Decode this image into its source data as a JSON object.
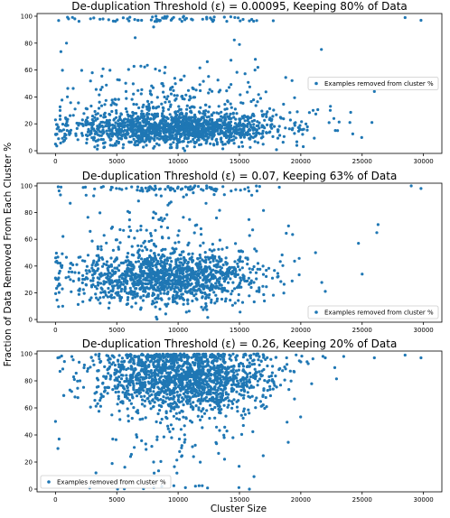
{
  "figure": {
    "ylabel": "Fraction of Data Removed From Each Cluster %",
    "xlabel": "Cluster Size"
  },
  "colors": {
    "point": "#1f77b4",
    "axis": "#000000",
    "legend_border": "#cccccc"
  },
  "chart_data": [
    {
      "type": "scatter",
      "title": "De-duplication Threshold (ε) = 0.00095, Keeping 80% of Data",
      "legend": "Examples removed from cluster %",
      "legend_loc": "center-right",
      "xlim": [
        -1500,
        31500
      ],
      "ylim": [
        -2,
        102
      ],
      "xticks": [
        0,
        5000,
        10000,
        15000,
        20000,
        25000,
        30000
      ],
      "yticks": [
        0,
        20,
        40,
        60,
        80,
        100
      ],
      "point_count": 1700,
      "distribution": {
        "center_x": 9500,
        "spread_x": 4300,
        "center_y": 16,
        "spread_y": 6,
        "outlier_rate": 0.2,
        "top_band": 0.04
      },
      "points": [
        [
          28500,
          99
        ],
        [
          29800,
          97
        ],
        [
          26000,
          44
        ],
        [
          24000,
          21
        ],
        [
          25800,
          21
        ],
        [
          22400,
          30
        ],
        [
          22700,
          24
        ],
        [
          23000,
          15
        ],
        [
          21000,
          30
        ],
        [
          20200,
          3
        ],
        [
          16500,
          62
        ],
        [
          16300,
          68
        ],
        [
          15000,
          79
        ],
        [
          0,
          5
        ],
        [
          900,
          80
        ],
        [
          1600,
          31
        ],
        [
          3000,
          58
        ],
        [
          6500,
          84
        ],
        [
          8000,
          92
        ]
      ]
    },
    {
      "type": "scatter",
      "title": "De-duplication Threshold (ε) = 0.07, Keeping 63% of Data",
      "legend": "Examples removed from cluster %",
      "legend_loc": "bottom-right",
      "xlim": [
        -1500,
        31500
      ],
      "ylim": [
        -2,
        102
      ],
      "xticks": [
        0,
        5000,
        10000,
        15000,
        20000,
        25000,
        30000
      ],
      "yticks": [
        0,
        20,
        40,
        60,
        80,
        100
      ],
      "point_count": 1500,
      "distribution": {
        "center_x": 9000,
        "spread_x": 3800,
        "center_y": 31,
        "spread_y": 10,
        "outlier_rate": 0.15,
        "top_band": 0.04
      },
      "points": [
        [
          29000,
          100
        ],
        [
          29800,
          98
        ],
        [
          26300,
          71
        ],
        [
          26200,
          65
        ],
        [
          25000,
          34
        ],
        [
          24700,
          57
        ],
        [
          22000,
          21
        ],
        [
          21200,
          50
        ],
        [
          19000,
          70
        ],
        [
          0,
          31
        ],
        [
          200,
          25
        ],
        [
          1200,
          87
        ],
        [
          2500,
          93
        ],
        [
          16000,
          93
        ]
      ]
    },
    {
      "type": "scatter",
      "title": "De-duplication Threshold (ε) = 0.26, Keeping 20% of Data",
      "legend": "Examples removed from cluster %",
      "legend_loc": "bottom-left",
      "xlim": [
        -1500,
        31500
      ],
      "ylim": [
        -2,
        102
      ],
      "xticks": [
        0,
        5000,
        10000,
        15000,
        20000,
        25000,
        30000
      ],
      "yticks": [
        0,
        20,
        40,
        60,
        80,
        100
      ],
      "point_count": 1700,
      "distribution": {
        "center_x": 10500,
        "spread_x": 3600,
        "center_y": 83,
        "spread_y": 13,
        "outlier_rate": 0.1,
        "top_band": 0.0
      },
      "points": [
        [
          28500,
          99
        ],
        [
          29800,
          97
        ],
        [
          26000,
          97
        ],
        [
          23500,
          98
        ],
        [
          22000,
          97
        ],
        [
          20000,
          94
        ],
        [
          0,
          50
        ],
        [
          300,
          37
        ],
        [
          200,
          30
        ],
        [
          3300,
          12
        ],
        [
          8000,
          20
        ],
        [
          2000,
          80
        ]
      ]
    }
  ]
}
